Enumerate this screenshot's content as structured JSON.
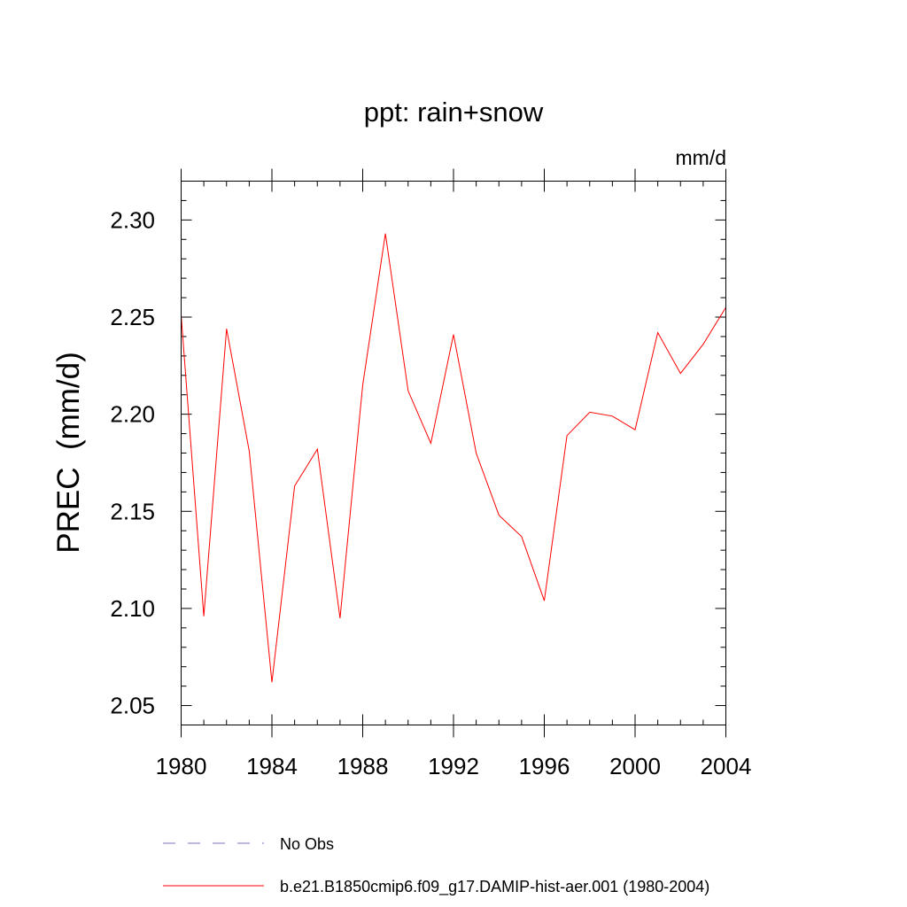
{
  "chart_data": {
    "type": "line",
    "title": "ppt: rain+snow",
    "units": "mm/d",
    "xlabel": "",
    "ylabel": "PREC  (mm/d)",
    "xlim": [
      1980,
      2004
    ],
    "ylim": [
      2.04,
      2.32
    ],
    "xticks": [
      1980,
      1984,
      1988,
      1992,
      1996,
      2000,
      2004
    ],
    "xtick_labels": [
      "1980",
      "1984",
      "1988",
      "1992",
      "1996",
      "2000",
      "2004"
    ],
    "yticks": [
      2.05,
      2.1,
      2.15,
      2.2,
      2.25,
      2.3
    ],
    "ytick_labels": [
      "2.05",
      "2.10",
      "2.15",
      "2.20",
      "2.25",
      "2.30"
    ],
    "grid": false,
    "legend_position": "bottom",
    "legend": [
      {
        "label": "No Obs",
        "color": "#7b6fc4",
        "style": "dashed"
      },
      {
        "label": "b.e21.B1850cmip6.f09_g17.DAMIP-hist-aer.001 (1980-2004)",
        "color": "#ff0000",
        "style": "solid"
      }
    ],
    "series": [
      {
        "name": "b.e21.B1850cmip6.f09_g17.DAMIP-hist-aer.001 (1980-2004)",
        "color": "#ff0000",
        "x": [
          1980,
          1981,
          1982,
          1983,
          1984,
          1985,
          1986,
          1987,
          1988,
          1989,
          1990,
          1991,
          1992,
          1993,
          1994,
          1995,
          1996,
          1997,
          1998,
          1999,
          2000,
          2001,
          2002,
          2003,
          2004
        ],
        "y": [
          2.251,
          2.096,
          2.244,
          2.181,
          2.062,
          2.163,
          2.182,
          2.095,
          2.215,
          2.293,
          2.212,
          2.185,
          2.241,
          2.18,
          2.148,
          2.137,
          2.104,
          2.189,
          2.201,
          2.199,
          2.192,
          2.242,
          2.221,
          2.236,
          2.255
        ]
      }
    ]
  }
}
